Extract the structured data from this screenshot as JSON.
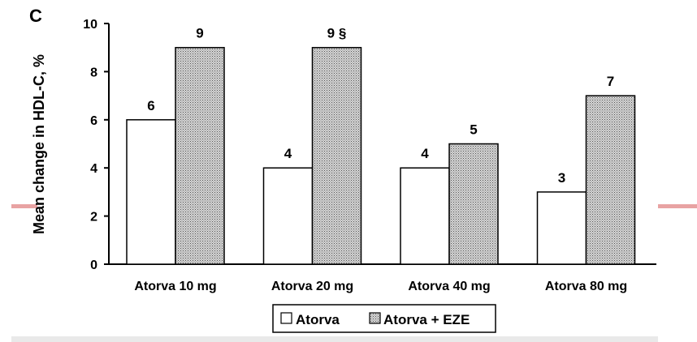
{
  "panel_letter": "C",
  "colors": {
    "atorva_fill": "#ffffff",
    "eze_fill_pattern": "stippled-gray",
    "axis": "#000000",
    "side_accent": "#e8a3a3",
    "bottom_band": "#e9e9e9"
  },
  "chart_data": {
    "type": "bar",
    "title": "",
    "xlabel": "",
    "ylabel": "Mean change in HDL-C, %",
    "ylim": [
      0,
      10
    ],
    "yticks": [
      0,
      2,
      4,
      6,
      8,
      10
    ],
    "grid": false,
    "legend_position": "bottom-center",
    "categories": [
      "Atorva 10 mg",
      "Atorva 20 mg",
      "Atorva 40 mg",
      "Atorva 80 mg"
    ],
    "series": [
      {
        "name": "Atorva",
        "values": [
          6,
          4,
          4,
          3
        ],
        "labels": [
          "6",
          "4",
          "4",
          "3"
        ]
      },
      {
        "name": "Atorva + EZE",
        "values": [
          9,
          9,
          5,
          7
        ],
        "labels": [
          "9",
          "9 §",
          "5",
          "7"
        ]
      }
    ]
  }
}
